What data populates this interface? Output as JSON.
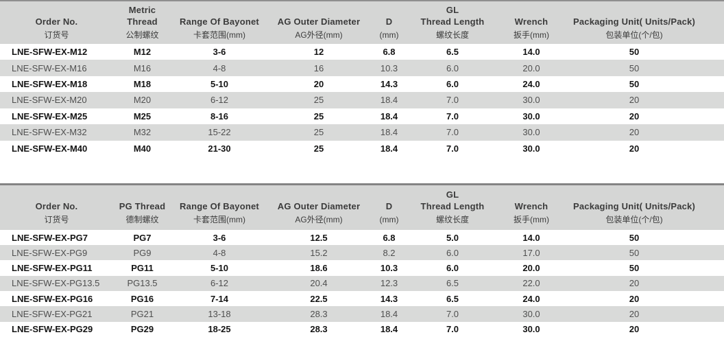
{
  "tables": [
    {
      "name": "metric-thread-table",
      "columns": [
        {
          "en": [
            "Order No."
          ],
          "zh": "订货号"
        },
        {
          "en": [
            "Metric Thread"
          ],
          "zh": "公制螺纹"
        },
        {
          "en": [
            "Range Of Bayonet"
          ],
          "zh": "卡套范围(mm)"
        },
        {
          "en": [
            "AG Outer Diameter"
          ],
          "zh": "AG外径(mm)"
        },
        {
          "en": [
            "D"
          ],
          "zh": "(mm)"
        },
        {
          "en": [
            "GL",
            "Thread Length"
          ],
          "zh": "螺纹长度"
        },
        {
          "en": [
            "Wrench"
          ],
          "zh": "扳手(mm)"
        },
        {
          "en": [
            "Packaging Unit( Units/Pack)"
          ],
          "zh": "包装单位(个/包)"
        }
      ],
      "rows": [
        {
          "cells": [
            "LNE-SFW-EX-M12",
            "M12",
            "3-6",
            "12",
            "6.8",
            "6.5",
            "14.0",
            "50"
          ]
        },
        {
          "cells": [
            "LNE-SFW-EX-M16",
            "M16",
            "4-8",
            "16",
            "10.3",
            "6.0",
            "20.0",
            "50"
          ]
        },
        {
          "cells": [
            "LNE-SFW-EX-M18",
            "M18",
            "5-10",
            "20",
            "14.3",
            "6.0",
            "24.0",
            "50"
          ]
        },
        {
          "cells": [
            "LNE-SFW-EX-M20",
            "M20",
            "6-12",
            "25",
            "18.4",
            "7.0",
            "30.0",
            "20"
          ]
        },
        {
          "cells": [
            "LNE-SFW-EX-M25",
            "M25",
            "8-16",
            "25",
            "18.4",
            "7.0",
            "30.0",
            "20"
          ]
        },
        {
          "cells": [
            "LNE-SFW-EX-M32",
            "M32",
            "15-22",
            "25",
            "18.4",
            "7.0",
            "30.0",
            "20"
          ]
        },
        {
          "cells": [
            "LNE-SFW-EX-M40",
            "M40",
            "21-30",
            "25",
            "18.4",
            "7.0",
            "30.0",
            "20"
          ]
        }
      ]
    },
    {
      "name": "pg-thread-table",
      "columns": [
        {
          "en": [
            "Order No."
          ],
          "zh": "订货号"
        },
        {
          "en": [
            "PG Thread"
          ],
          "zh": "德制螺纹"
        },
        {
          "en": [
            "Range Of Bayonet"
          ],
          "zh": "卡套范围(mm)"
        },
        {
          "en": [
            "AG Outer Diameter"
          ],
          "zh": "AG外径(mm)"
        },
        {
          "en": [
            "D"
          ],
          "zh": "(mm)"
        },
        {
          "en": [
            "GL",
            "Thread Length"
          ],
          "zh": "螺纹长度"
        },
        {
          "en": [
            "Wrench"
          ],
          "zh": "扳手(mm)"
        },
        {
          "en": [
            "Packaging Unit( Units/Pack)"
          ],
          "zh": "包装单位(个/包)"
        }
      ],
      "rows": [
        {
          "cells": [
            "LNE-SFW-EX-PG7",
            "PG7",
            "3-6",
            "12.5",
            "6.8",
            "5.0",
            "14.0",
            "50"
          ]
        },
        {
          "cells": [
            "LNE-SFW-EX-PG9",
            "PG9",
            "4-8",
            "15.2",
            "8.2",
            "6.0",
            "17.0",
            "50"
          ]
        },
        {
          "cells": [
            "LNE-SFW-EX-PG11",
            "PG11",
            "5-10",
            "18.6",
            "10.3",
            "6.0",
            "20.0",
            "50"
          ]
        },
        {
          "cells": [
            "LNE-SFW-EX-PG13.5",
            "PG13.5",
            "6-12",
            "20.4",
            "12.3",
            "6.5",
            "22.0",
            "20"
          ]
        },
        {
          "cells": [
            "LNE-SFW-EX-PG16",
            "PG16",
            "7-14",
            "22.5",
            "14.3",
            "6.5",
            "24.0",
            "20"
          ]
        },
        {
          "cells": [
            "LNE-SFW-EX-PG21",
            "PG21",
            "13-18",
            "28.3",
            "18.4",
            "7.0",
            "30.0",
            "20"
          ]
        },
        {
          "cells": [
            "LNE-SFW-EX-PG29",
            "PG29",
            "18-25",
            "28.3",
            "18.4",
            "7.0",
            "30.0",
            "20"
          ]
        }
      ]
    }
  ],
  "colors": {
    "header_bg": "#d5d6d5",
    "alt_row_bg": "#d9dad9",
    "rule": "#8f8f8f",
    "header_text": "#3b3b3b",
    "bold_row_text": "#141414",
    "normal_row_text": "#4f4f4f"
  }
}
